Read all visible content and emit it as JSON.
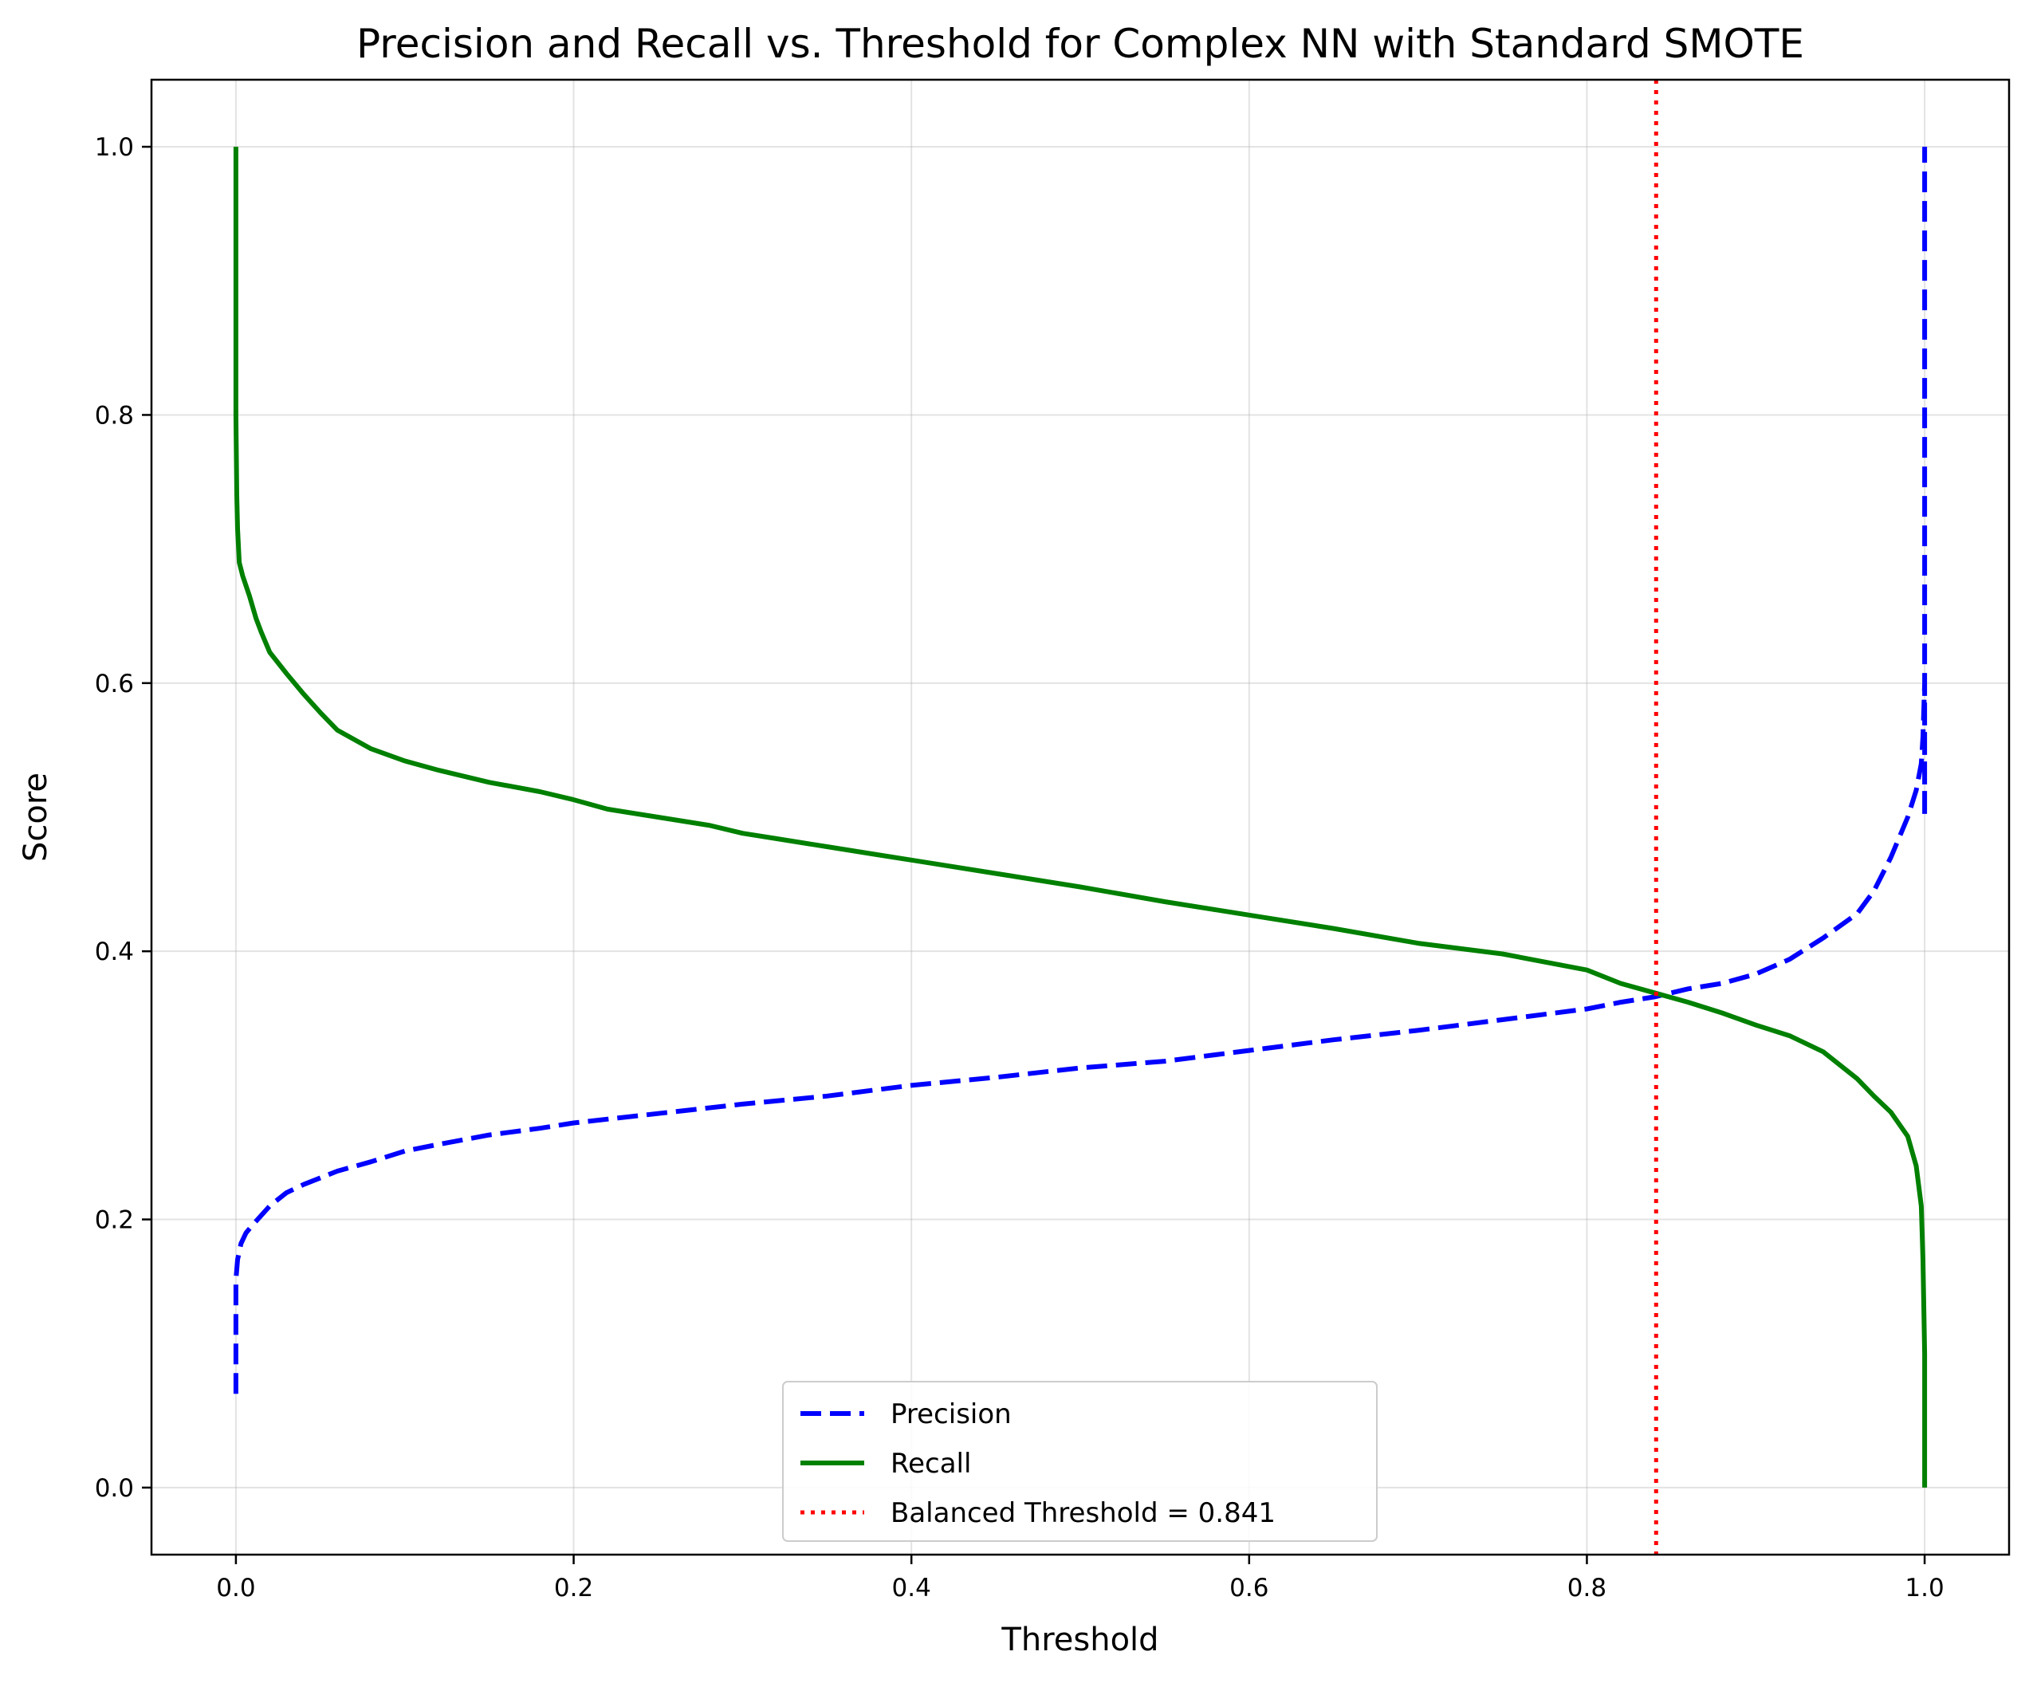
{
  "chart_data": {
    "type": "line",
    "title": "Precision and Recall vs. Threshold for Complex NN with Standard SMOTE",
    "xlabel": "Threshold",
    "ylabel": "Score",
    "xlim": [
      -0.05,
      1.05
    ],
    "ylim": [
      -0.05,
      1.05
    ],
    "x_ticks": [
      0.0,
      0.2,
      0.4,
      0.6,
      0.8,
      1.0
    ],
    "y_ticks": [
      0.0,
      0.2,
      0.4,
      0.6,
      0.8,
      1.0
    ],
    "x_tick_labels": [
      "0.0",
      "0.2",
      "0.4",
      "0.6",
      "0.8",
      "1.0"
    ],
    "y_tick_labels": [
      "0.0",
      "0.2",
      "0.4",
      "0.6",
      "0.8",
      "1.0"
    ],
    "grid": true,
    "legend_position": "lower-center",
    "series": [
      {
        "name": "Precision",
        "color": "#0000ff",
        "style": "dashed",
        "x": [
          0.0,
          0.0,
          0.0,
          0.001,
          0.003,
          0.006,
          0.01,
          0.015,
          0.02,
          0.03,
          0.04,
          0.05,
          0.06,
          0.08,
          0.1,
          0.12,
          0.15,
          0.18,
          0.2,
          0.25,
          0.3,
          0.35,
          0.4,
          0.45,
          0.5,
          0.55,
          0.6,
          0.65,
          0.7,
          0.75,
          0.8,
          0.82,
          0.84,
          0.86,
          0.88,
          0.9,
          0.92,
          0.94,
          0.96,
          0.97,
          0.98,
          0.99,
          0.995,
          0.998,
          0.999,
          1.0,
          1.0,
          1.0,
          1.0
        ],
        "y": [
          0.07,
          0.13,
          0.155,
          0.17,
          0.182,
          0.19,
          0.196,
          0.203,
          0.21,
          0.22,
          0.226,
          0.231,
          0.236,
          0.243,
          0.251,
          0.256,
          0.263,
          0.268,
          0.272,
          0.279,
          0.286,
          0.292,
          0.3,
          0.306,
          0.313,
          0.318,
          0.326,
          0.334,
          0.341,
          0.349,
          0.357,
          0.362,
          0.366,
          0.372,
          0.376,
          0.383,
          0.394,
          0.41,
          0.428,
          0.445,
          0.47,
          0.5,
          0.52,
          0.54,
          0.56,
          0.6,
          0.5,
          0.75,
          1.0
        ]
      },
      {
        "name": "Recall",
        "color": "#008000",
        "style": "solid",
        "x": [
          0.0,
          0.0,
          0.0,
          0.0005,
          0.001,
          0.002,
          0.004,
          0.008,
          0.012,
          0.015,
          0.02,
          0.03,
          0.04,
          0.05,
          0.06,
          0.08,
          0.1,
          0.12,
          0.15,
          0.18,
          0.2,
          0.22,
          0.25,
          0.28,
          0.3,
          0.32,
          0.35,
          0.38,
          0.4,
          0.45,
          0.5,
          0.55,
          0.6,
          0.65,
          0.7,
          0.75,
          0.8,
          0.82,
          0.84,
          0.86,
          0.88,
          0.9,
          0.92,
          0.94,
          0.96,
          0.97,
          0.98,
          0.99,
          0.995,
          0.998,
          0.999,
          1.0,
          1.0
        ],
        "y": [
          1.0,
          0.9,
          0.8,
          0.74,
          0.715,
          0.69,
          0.68,
          0.665,
          0.648,
          0.638,
          0.623,
          0.607,
          0.592,
          0.578,
          0.565,
          0.551,
          0.542,
          0.535,
          0.526,
          0.519,
          0.513,
          0.506,
          0.5,
          0.494,
          0.488,
          0.484,
          0.478,
          0.472,
          0.468,
          0.458,
          0.448,
          0.437,
          0.427,
          0.417,
          0.406,
          0.398,
          0.386,
          0.376,
          0.369,
          0.362,
          0.354,
          0.345,
          0.337,
          0.325,
          0.305,
          0.292,
          0.28,
          0.262,
          0.24,
          0.21,
          0.17,
          0.1,
          0.0
        ]
      },
      {
        "name": "Balanced Threshold = 0.841",
        "color": "#ff0000",
        "style": "dotted",
        "vline_x": 0.841
      }
    ]
  }
}
